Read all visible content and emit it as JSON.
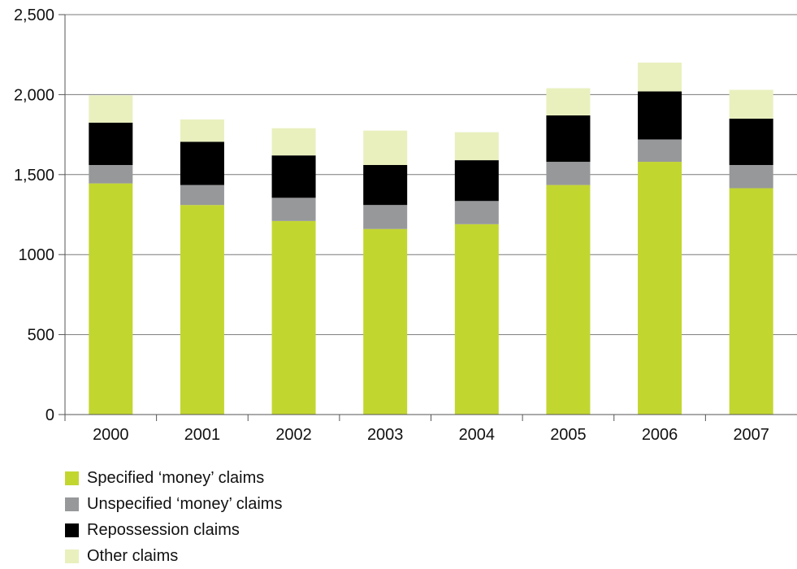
{
  "chart_data": {
    "type": "bar",
    "stacked": true,
    "categories": [
      "2000",
      "2001",
      "2002",
      "2003",
      "2004",
      "2005",
      "2006",
      "2007"
    ],
    "series": [
      {
        "name": "Specified ‘money’ claims",
        "color": "#c2d630",
        "values": [
          1445,
          1310,
          1210,
          1160,
          1190,
          1435,
          1580,
          1415
        ]
      },
      {
        "name": "Unspecified ‘money’ claims",
        "color": "#97989a",
        "values": [
          115,
          125,
          145,
          150,
          145,
          145,
          140,
          145
        ]
      },
      {
        "name": "Repossession claims",
        "color": "#000000",
        "values": [
          265,
          270,
          265,
          250,
          255,
          290,
          300,
          290
        ]
      },
      {
        "name": "Other claims",
        "color": "#e9f0be",
        "values": [
          170,
          140,
          170,
          215,
          175,
          170,
          180,
          180
        ]
      }
    ],
    "yticks": [
      "0",
      "500",
      "1000",
      "1,500",
      "2,000",
      "2,500"
    ],
    "ylim": [
      0,
      2500
    ],
    "grid": true,
    "legend_position": "bottom-left"
  }
}
